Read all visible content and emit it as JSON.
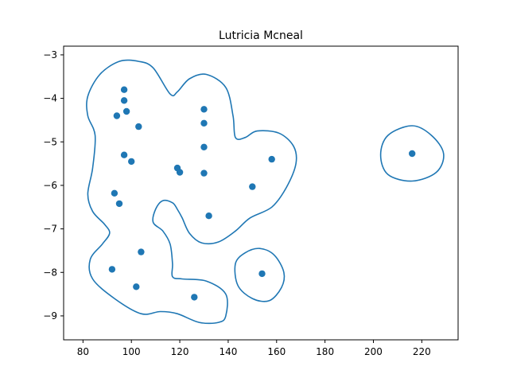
{
  "chart_data": {
    "type": "scatter",
    "title": "Lutricia Mcneal",
    "xlabel": "",
    "ylabel": "",
    "xlim": [
      72,
      235
    ],
    "ylim": [
      -9.55,
      -2.8
    ],
    "xticks": [
      80,
      100,
      120,
      140,
      160,
      180,
      200,
      220
    ],
    "yticks": [
      -3,
      -4,
      -5,
      -6,
      -7,
      -8,
      -9
    ],
    "grid": false,
    "colors": {
      "points": "#1f77b4",
      "contours": "#1f77b4"
    },
    "points": [
      {
        "x": 97,
        "y": -3.8
      },
      {
        "x": 97,
        "y": -4.05
      },
      {
        "x": 98,
        "y": -4.3
      },
      {
        "x": 94,
        "y": -4.4
      },
      {
        "x": 103,
        "y": -4.65
      },
      {
        "x": 97,
        "y": -5.3
      },
      {
        "x": 100,
        "y": -5.45
      },
      {
        "x": 93,
        "y": -6.18
      },
      {
        "x": 95,
        "y": -6.42
      },
      {
        "x": 130,
        "y": -4.25
      },
      {
        "x": 130,
        "y": -4.57
      },
      {
        "x": 130,
        "y": -5.12
      },
      {
        "x": 119,
        "y": -5.6
      },
      {
        "x": 120,
        "y": -5.7
      },
      {
        "x": 130,
        "y": -5.72
      },
      {
        "x": 132,
        "y": -6.7
      },
      {
        "x": 150,
        "y": -6.03
      },
      {
        "x": 158,
        "y": -5.4
      },
      {
        "x": 104,
        "y": -7.53
      },
      {
        "x": 92,
        "y": -7.93
      },
      {
        "x": 102,
        "y": -8.33
      },
      {
        "x": 126,
        "y": -8.57
      },
      {
        "x": 154,
        "y": -8.03
      },
      {
        "x": 216,
        "y": -5.27
      }
    ],
    "contours": [
      [
        [
          109,
          -3.3
        ],
        [
          116,
          -3.9
        ],
        [
          119,
          -3.85
        ],
        [
          124,
          -3.55
        ],
        [
          131,
          -3.45
        ],
        [
          139,
          -3.75
        ],
        [
          142,
          -4.4
        ],
        [
          143,
          -4.9
        ],
        [
          147,
          -4.9
        ],
        [
          152,
          -4.75
        ],
        [
          161,
          -4.8
        ],
        [
          167,
          -5.1
        ],
        [
          168,
          -5.5
        ],
        [
          164,
          -6.05
        ],
        [
          158,
          -6.5
        ],
        [
          149,
          -6.75
        ],
        [
          143,
          -7.05
        ],
        [
          136,
          -7.3
        ],
        [
          129,
          -7.32
        ],
        [
          124,
          -7.1
        ],
        [
          121,
          -6.75
        ],
        [
          119,
          -6.55
        ],
        [
          117,
          -6.4
        ],
        [
          113,
          -6.35
        ],
        [
          110,
          -6.55
        ],
        [
          109,
          -6.85
        ],
        [
          113,
          -7.05
        ],
        [
          116,
          -7.35
        ],
        [
          117,
          -7.8
        ],
        [
          117,
          -8.1
        ],
        [
          121,
          -8.15
        ],
        [
          131,
          -8.2
        ],
        [
          139,
          -8.5
        ],
        [
          139,
          -9.0
        ],
        [
          136,
          -9.15
        ],
        [
          128,
          -9.15
        ],
        [
          119,
          -8.95
        ],
        [
          112,
          -8.9
        ],
        [
          104,
          -8.95
        ],
        [
          93,
          -8.6
        ],
        [
          84,
          -8.15
        ],
        [
          83,
          -7.7
        ],
        [
          88,
          -7.35
        ],
        [
          91,
          -7.1
        ],
        [
          89,
          -6.9
        ],
        [
          84,
          -6.6
        ],
        [
          82,
          -6.2
        ],
        [
          84,
          -5.6
        ],
        [
          85,
          -4.85
        ],
        [
          82,
          -4.4
        ],
        [
          82,
          -3.95
        ],
        [
          87,
          -3.45
        ],
        [
          95,
          -3.15
        ],
        [
          103,
          -3.15
        ],
        [
          109,
          -3.3
        ]
      ],
      [
        [
          153,
          -7.45
        ],
        [
          159,
          -7.6
        ],
        [
          163,
          -8.0
        ],
        [
          162,
          -8.35
        ],
        [
          157,
          -8.65
        ],
        [
          150,
          -8.6
        ],
        [
          144,
          -8.3
        ],
        [
          143,
          -7.8
        ],
        [
          147,
          -7.55
        ],
        [
          153,
          -7.45
        ]
      ],
      [
        [
          216,
          -4.63
        ],
        [
          224,
          -4.85
        ],
        [
          229,
          -5.27
        ],
        [
          226,
          -5.7
        ],
        [
          216,
          -5.9
        ],
        [
          206,
          -5.75
        ],
        [
          203,
          -5.3
        ],
        [
          206,
          -4.85
        ],
        [
          216,
          -4.63
        ]
      ]
    ]
  }
}
